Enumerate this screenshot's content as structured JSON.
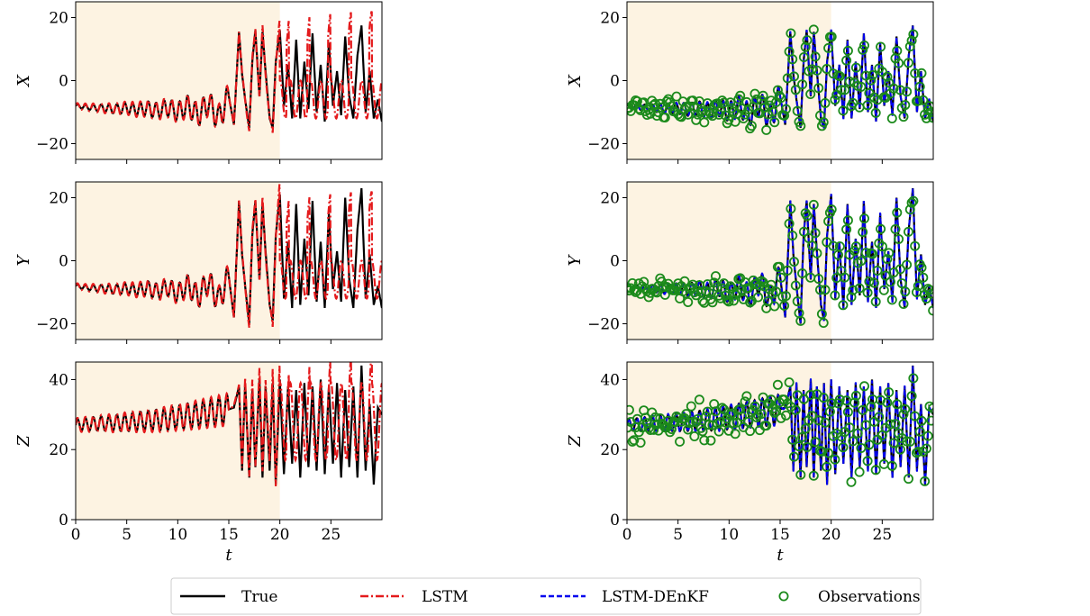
{
  "colors": {
    "true": "#000000",
    "lstm": "#e41a1c",
    "denkf": "#0000ee",
    "observations": "#1b8a1b",
    "training_shade": "#fdf3e2"
  },
  "legend": {
    "placement": "bottom-center",
    "entries": [
      {
        "key": "true",
        "label": "True"
      },
      {
        "key": "lstm",
        "label": "LSTM"
      },
      {
        "key": "denkf",
        "label": "LSTM-DEnKF"
      },
      {
        "key": "observations",
        "label": "Observations"
      }
    ]
  },
  "chart_data": {
    "type": "line",
    "xlim": [
      0,
      30
    ],
    "x_ticks": [
      0,
      5,
      10,
      15,
      20,
      25
    ],
    "xlabel": "t",
    "training_region": [
      0,
      20
    ],
    "panels": [
      {
        "id": "x-lstm",
        "row": 0,
        "col": 0,
        "ylabel": "X",
        "ylim": [
          -25,
          25
        ],
        "yticks": [
          -20,
          0,
          20
        ],
        "series": [
          "true",
          "lstm"
        ]
      },
      {
        "id": "y-lstm",
        "row": 1,
        "col": 0,
        "ylabel": "Y",
        "ylim": [
          -25,
          25
        ],
        "yticks": [
          -20,
          0,
          20
        ],
        "series": [
          "true",
          "lstm"
        ]
      },
      {
        "id": "z-lstm",
        "row": 2,
        "col": 0,
        "ylabel": "Z",
        "ylim": [
          0,
          45
        ],
        "yticks": [
          0,
          20,
          40
        ],
        "series": [
          "true",
          "lstm"
        ]
      },
      {
        "id": "x-denkf",
        "row": 0,
        "col": 1,
        "ylabel": "X",
        "ylim": [
          -25,
          25
        ],
        "yticks": [
          -20,
          0,
          20
        ],
        "series": [
          "true",
          "denkf",
          "observations"
        ]
      },
      {
        "id": "y-denkf",
        "row": 1,
        "col": 1,
        "ylabel": "Y",
        "ylim": [
          -25,
          25
        ],
        "yticks": [
          -20,
          0,
          20
        ],
        "series": [
          "true",
          "denkf",
          "observations"
        ]
      },
      {
        "id": "z-denkf",
        "row": 2,
        "col": 1,
        "ylabel": "Z",
        "ylim": [
          0,
          45
        ],
        "yticks": [
          0,
          20,
          40
        ],
        "series": [
          "true",
          "denkf",
          "observations"
        ]
      }
    ],
    "true_series": {
      "X": {
        "t": [
          0,
          1,
          2,
          3,
          4,
          5,
          6,
          7,
          8,
          9,
          10,
          11,
          12,
          13,
          14,
          15,
          15.5,
          16,
          16.3,
          16.6,
          17,
          17.3,
          17.6,
          18,
          18.3,
          18.6,
          19,
          19.3,
          19.6,
          20,
          20.4,
          20.8,
          21.2,
          21.6,
          22,
          22.4,
          22.8,
          23.2,
          23.6,
          24,
          24.4,
          24.8,
          25.2,
          25.6,
          26,
          26.4,
          26.8,
          27.2,
          27.6,
          28,
          28.4,
          28.8,
          29.2,
          29.6,
          30
        ],
        "v": [
          -8,
          -8.4,
          -8.6,
          -8.8,
          -9,
          -8.7,
          -9.2,
          -8.8,
          -9.6,
          -8.5,
          -10,
          -8,
          -11,
          -7,
          -12,
          -5,
          -14,
          15.5,
          2,
          -6,
          -15,
          6,
          16,
          -5,
          15.5,
          3,
          -12,
          -15,
          6,
          16,
          -8,
          5,
          -12,
          13,
          -12,
          6,
          -9,
          15,
          -10,
          5,
          -13,
          12,
          -8,
          3,
          -11,
          14,
          -5,
          -12,
          8,
          17.5,
          -10,
          3,
          -12,
          -6,
          -13
        ]
      },
      "Y": {
        "t": [
          0,
          1,
          2,
          3,
          4,
          5,
          6,
          7,
          8,
          9,
          10,
          11,
          12,
          13,
          14,
          15,
          15.5,
          16,
          16.3,
          16.6,
          17,
          17.3,
          17.6,
          18,
          18.3,
          18.6,
          19,
          19.3,
          19.6,
          20,
          20.4,
          20.8,
          21.2,
          21.6,
          22,
          22.4,
          22.8,
          23.2,
          23.6,
          24,
          24.4,
          24.8,
          25.2,
          25.6,
          26,
          26.4,
          26.8,
          27.2,
          27.6,
          28,
          28.4,
          28.8,
          29.2,
          29.6,
          30
        ],
        "v": [
          -8,
          -8.5,
          -8.7,
          -8.9,
          -9.1,
          -8.8,
          -9.3,
          -8.7,
          -9.8,
          -8.4,
          -10.5,
          -7.8,
          -11.5,
          -6.5,
          -12.5,
          -5,
          -18,
          19,
          2,
          -8,
          -20,
          8,
          19,
          -6,
          18,
          3,
          -14,
          -19,
          8,
          21,
          -12,
          6,
          -15,
          18,
          -14,
          7,
          -11,
          19,
          -13,
          6,
          -15,
          15,
          -9,
          3,
          -13,
          20,
          -6,
          -15,
          10,
          23,
          -12,
          2,
          -14,
          -8,
          -15
        ]
      },
      "Z": {
        "t": [
          0,
          1,
          2,
          3,
          4,
          5,
          6,
          7,
          8,
          9,
          10,
          11,
          12,
          13,
          14,
          15,
          15.5,
          16,
          16.3,
          16.6,
          17,
          17.3,
          17.6,
          18,
          18.3,
          18.6,
          19,
          19.3,
          19.6,
          20,
          20.4,
          20.8,
          21.2,
          21.6,
          22,
          22.4,
          22.8,
          23.2,
          23.6,
          24,
          24.4,
          24.8,
          25.2,
          25.6,
          26,
          26.4,
          26.8,
          27.2,
          27.6,
          28,
          28.4,
          28.8,
          29.2,
          29.6,
          30
        ],
        "v": [
          27,
          27.2,
          27.4,
          27.5,
          27.6,
          27.8,
          28,
          28.2,
          28.4,
          28.8,
          29.2,
          29.6,
          30,
          30.5,
          31,
          31.5,
          32,
          38,
          14,
          39,
          12,
          37,
          15,
          40,
          12,
          38,
          14,
          39,
          10,
          40,
          13,
          38,
          16,
          37,
          12,
          39,
          15,
          38,
          14,
          40,
          13,
          38,
          16,
          39,
          12,
          37,
          15,
          38,
          12,
          44,
          14,
          33,
          10,
          32,
          30
        ]
      }
    }
  }
}
